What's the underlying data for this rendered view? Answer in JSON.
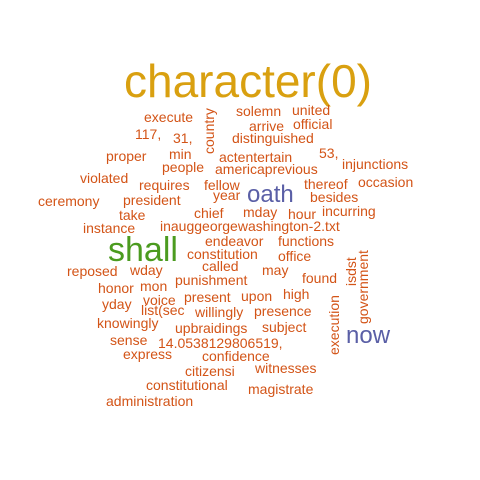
{
  "colors": {
    "background": "#ffffff",
    "orange": "#d35417",
    "gold": "#d9a010",
    "green": "#4b9b1f",
    "blue": "#5a5fa6"
  },
  "words": [
    {
      "id": "character",
      "text": "character(0)",
      "color": "gold"
    },
    {
      "id": "shall",
      "text": "shall",
      "color": "green"
    },
    {
      "id": "oath",
      "text": "oath",
      "color": "blue"
    },
    {
      "id": "now",
      "text": "now",
      "color": "blue"
    },
    {
      "id": "execute",
      "text": "execute",
      "color": "orange"
    },
    {
      "id": "country",
      "text": "country",
      "color": "orange"
    },
    {
      "id": "solemn",
      "text": "solemn",
      "color": "orange"
    },
    {
      "id": "united",
      "text": "united",
      "color": "orange"
    },
    {
      "id": "n117",
      "text": "117,",
      "color": "orange"
    },
    {
      "id": "n31",
      "text": "31,",
      "color": "orange"
    },
    {
      "id": "arrive",
      "text": "arrive",
      "color": "orange"
    },
    {
      "id": "official",
      "text": "official",
      "color": "orange"
    },
    {
      "id": "distinguished",
      "text": "distinguished",
      "color": "orange"
    },
    {
      "id": "proper",
      "text": "proper",
      "color": "orange"
    },
    {
      "id": "min",
      "text": "min",
      "color": "orange"
    },
    {
      "id": "actentertain",
      "text": "actentertain",
      "color": "orange"
    },
    {
      "id": "n53",
      "text": "53,",
      "color": "orange"
    },
    {
      "id": "people",
      "text": "people",
      "color": "orange"
    },
    {
      "id": "americaprevious",
      "text": "americaprevious",
      "color": "orange"
    },
    {
      "id": "injunctions",
      "text": "injunctions",
      "color": "orange"
    },
    {
      "id": "violated",
      "text": "violated",
      "color": "orange"
    },
    {
      "id": "requires",
      "text": "requires",
      "color": "orange"
    },
    {
      "id": "fellow",
      "text": "fellow",
      "color": "orange"
    },
    {
      "id": "thereof",
      "text": "thereof",
      "color": "orange"
    },
    {
      "id": "occasion",
      "text": "occasion",
      "color": "orange"
    },
    {
      "id": "ceremony",
      "text": "ceremony",
      "color": "orange"
    },
    {
      "id": "president",
      "text": "president",
      "color": "orange"
    },
    {
      "id": "year",
      "text": "year",
      "color": "orange"
    },
    {
      "id": "besides",
      "text": "besides",
      "color": "orange"
    },
    {
      "id": "take",
      "text": "take",
      "color": "orange"
    },
    {
      "id": "chief",
      "text": "chief",
      "color": "orange"
    },
    {
      "id": "mday",
      "text": "mday",
      "color": "orange"
    },
    {
      "id": "hour",
      "text": "hour",
      "color": "orange"
    },
    {
      "id": "incurring",
      "text": "incurring",
      "color": "orange"
    },
    {
      "id": "instance",
      "text": "instance",
      "color": "orange"
    },
    {
      "id": "inauggeorgewashington",
      "text": "inauggeorgewashington-2.txt",
      "color": "orange"
    },
    {
      "id": "endeavor",
      "text": "endeavor",
      "color": "orange"
    },
    {
      "id": "functions",
      "text": "functions",
      "color": "orange"
    },
    {
      "id": "isdst",
      "text": "isdst",
      "color": "orange"
    },
    {
      "id": "constitution",
      "text": "constitution",
      "color": "orange"
    },
    {
      "id": "office",
      "text": "office",
      "color": "orange"
    },
    {
      "id": "called",
      "text": "called",
      "color": "orange"
    },
    {
      "id": "may",
      "text": "may",
      "color": "orange"
    },
    {
      "id": "reposed",
      "text": "reposed",
      "color": "orange"
    },
    {
      "id": "wday",
      "text": "wday",
      "color": "orange"
    },
    {
      "id": "punishment",
      "text": "punishment",
      "color": "orange"
    },
    {
      "id": "found",
      "text": "found",
      "color": "orange"
    },
    {
      "id": "government",
      "text": "government",
      "color": "orange"
    },
    {
      "id": "honor",
      "text": "honor",
      "color": "orange"
    },
    {
      "id": "mon",
      "text": "mon",
      "color": "orange"
    },
    {
      "id": "high",
      "text": "high",
      "color": "orange"
    },
    {
      "id": "voice",
      "text": "voice",
      "color": "orange"
    },
    {
      "id": "present",
      "text": "present",
      "color": "orange"
    },
    {
      "id": "upon",
      "text": "upon",
      "color": "orange"
    },
    {
      "id": "yday",
      "text": "yday",
      "color": "orange"
    },
    {
      "id": "listsec",
      "text": "list(sec",
      "color": "orange"
    },
    {
      "id": "willingly",
      "text": "willingly",
      "color": "orange"
    },
    {
      "id": "presence",
      "text": "presence",
      "color": "orange"
    },
    {
      "id": "execution",
      "text": "execution",
      "color": "orange"
    },
    {
      "id": "knowingly",
      "text": "knowingly",
      "color": "orange"
    },
    {
      "id": "upbraidings",
      "text": "upbraidings",
      "color": "orange"
    },
    {
      "id": "subject",
      "text": "subject",
      "color": "orange"
    },
    {
      "id": "sense",
      "text": "sense",
      "color": "orange"
    },
    {
      "id": "num14",
      "text": "14.0538129806519,",
      "color": "orange"
    },
    {
      "id": "express",
      "text": "express",
      "color": "orange"
    },
    {
      "id": "confidence",
      "text": "confidence",
      "color": "orange"
    },
    {
      "id": "witnesses",
      "text": "witnesses",
      "color": "orange"
    },
    {
      "id": "citizensi",
      "text": "citizensi",
      "color": "orange"
    },
    {
      "id": "constitutional",
      "text": "constitutional",
      "color": "orange"
    },
    {
      "id": "magistrate",
      "text": "magistrate",
      "color": "orange"
    },
    {
      "id": "administration",
      "text": "administration",
      "color": "orange"
    }
  ]
}
